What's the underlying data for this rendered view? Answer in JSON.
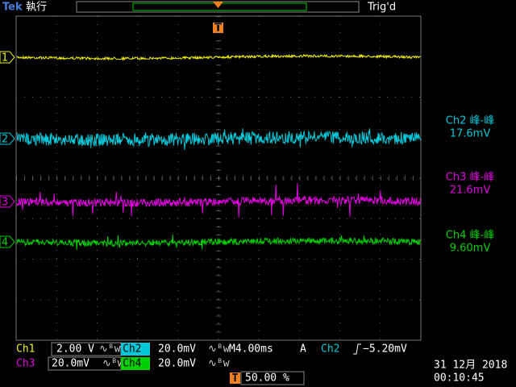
{
  "header": {
    "brand": "Tek",
    "status": "執行",
    "trigger_state": "Trig'd",
    "trigger_marker": "T"
  },
  "channels": [
    {
      "marker": "1"
    },
    {
      "marker": "2"
    },
    {
      "marker": "3"
    },
    {
      "marker": "4"
    }
  ],
  "measurements": [
    {
      "label": "Ch2 峰-峰",
      "value": "17.6mV"
    },
    {
      "label": "Ch3 峰-峰",
      "value": "21.6mV"
    },
    {
      "label": "Ch4 峰-峰",
      "value": "9.60mV"
    }
  ],
  "settings": {
    "ch1": {
      "label": "Ch1",
      "scale": "2.00 V"
    },
    "ch2": {
      "label": "Ch2",
      "scale": "20.0mV"
    },
    "ch3": {
      "label": "Ch3",
      "scale": "20.0mV"
    },
    "ch4": {
      "label": "Ch4",
      "scale": "20.0mV"
    },
    "timebase": "M4.00ms",
    "trigger": {
      "mode": "A",
      "source": "Ch2",
      "level": "−5.20mV"
    },
    "trigger_position": {
      "marker": "T",
      "value": "50.00 %"
    }
  },
  "footer": {
    "date": "31 12月 2018",
    "time": "00:10:45"
  }
}
